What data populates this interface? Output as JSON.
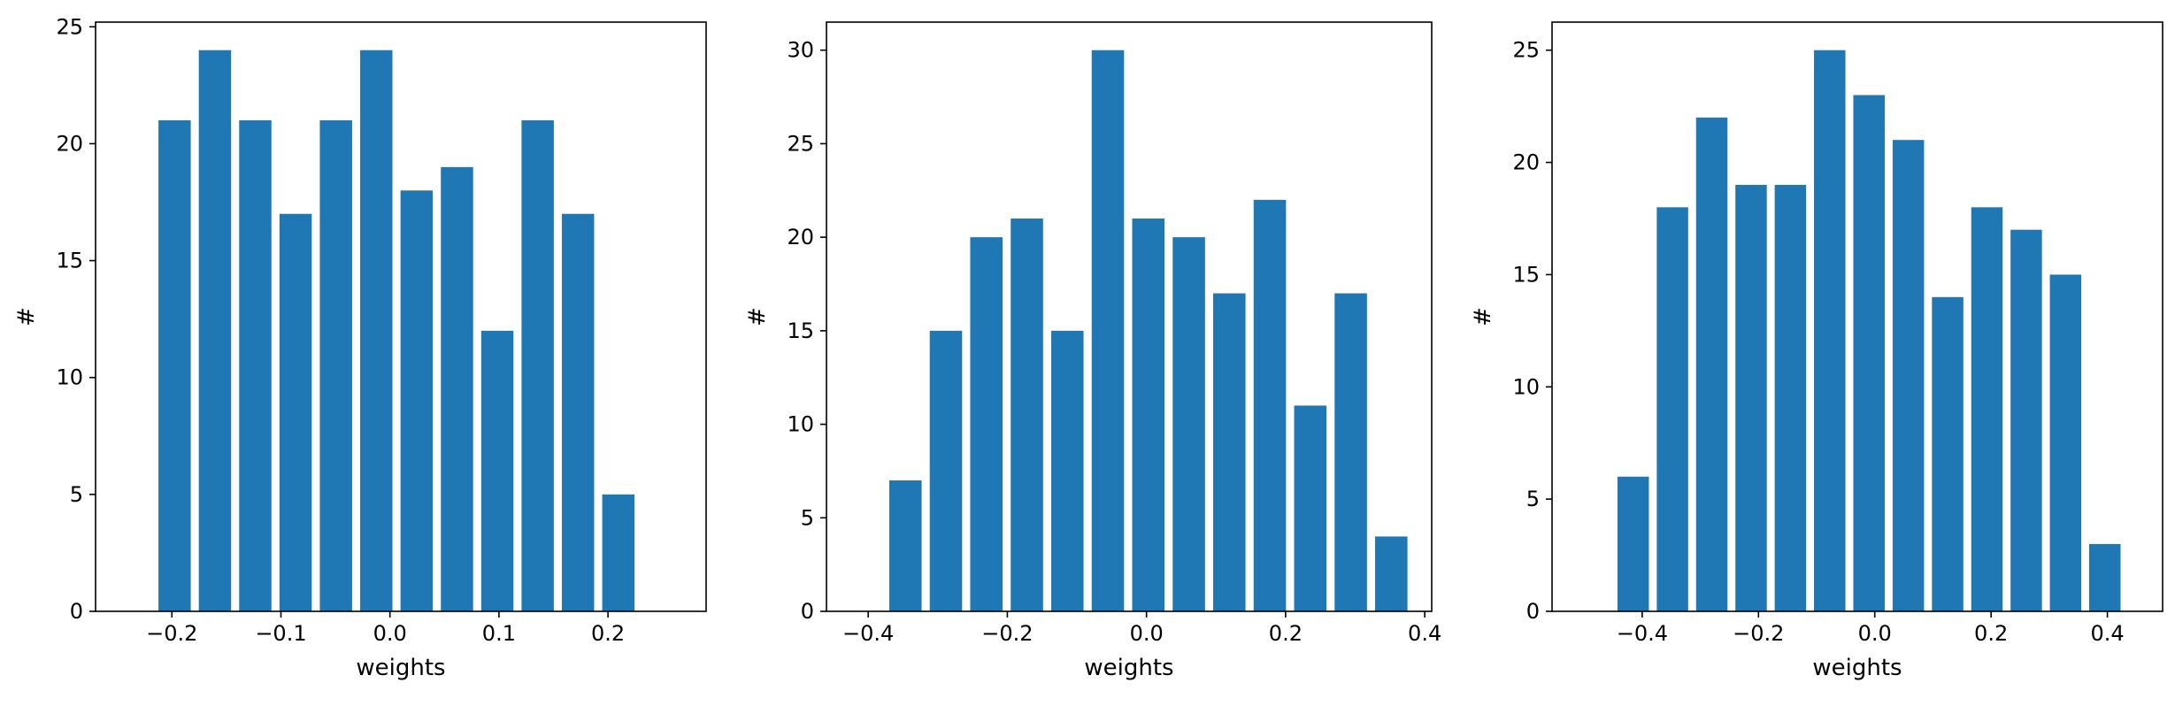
{
  "chart_data": [
    {
      "type": "bar",
      "xlabel": "weights",
      "ylabel": "#",
      "xlim": [
        -0.27,
        0.29
      ],
      "ylim": [
        0,
        25.2
      ],
      "xticks": [
        -0.2,
        -0.1,
        0.0,
        0.1,
        0.2
      ],
      "xtick_labels": [
        "−0.2",
        "−0.1",
        "0.0",
        "0.1",
        "0.2"
      ],
      "yticks": [
        0,
        5,
        10,
        15,
        20,
        25
      ],
      "ytick_labels": [
        "0",
        "5",
        "10",
        "15",
        "20",
        "25"
      ],
      "bar_width": 0.0296,
      "x": [
        -0.1975,
        -0.1605,
        -0.1235,
        -0.0865,
        -0.0495,
        -0.0125,
        0.0245,
        0.0615,
        0.0985,
        0.1355,
        0.1725,
        0.2095
      ],
      "values": [
        21,
        24,
        21,
        17,
        21,
        24,
        18,
        19,
        12,
        21,
        17,
        5
      ],
      "color": "#1f77b4",
      "grid": false
    },
    {
      "type": "bar",
      "xlabel": "weights",
      "ylabel": "#",
      "xlim": [
        -0.46,
        0.41
      ],
      "ylim": [
        0,
        31.5
      ],
      "xticks": [
        -0.4,
        -0.2,
        0.0,
        0.2,
        0.4
      ],
      "xtick_labels": [
        "−0.4",
        "−0.2",
        "0.0",
        "0.2",
        "0.4"
      ],
      "yticks": [
        0,
        5,
        10,
        15,
        20,
        25,
        30
      ],
      "ytick_labels": [
        "0",
        "5",
        "10",
        "15",
        "20",
        "25",
        "30"
      ],
      "bar_width": 0.0465,
      "x": [
        -0.3465,
        -0.2883,
        -0.2301,
        -0.1719,
        -0.1137,
        -0.0555,
        0.0027,
        0.0609,
        0.1191,
        0.1773,
        0.2355,
        0.2937,
        0.3519
      ],
      "values": [
        7,
        15,
        20,
        21,
        15,
        30,
        21,
        20,
        17,
        22,
        11,
        17,
        4
      ],
      "color": "#1f77b4",
      "grid": false
    },
    {
      "type": "bar",
      "xlabel": "weights",
      "ylabel": "#",
      "xlim": [
        -0.555,
        0.495
      ],
      "ylim": [
        0,
        26.25
      ],
      "xticks": [
        -0.4,
        -0.2,
        0.0,
        0.2,
        0.4
      ],
      "xtick_labels": [
        "−0.4",
        "−0.2",
        "0.0",
        "0.2",
        "0.4"
      ],
      "yticks": [
        0,
        5,
        10,
        15,
        20,
        25
      ],
      "ytick_labels": [
        "0",
        "5",
        "10",
        "15",
        "20",
        "25"
      ],
      "bar_width": 0.054,
      "x": [
        -0.4155,
        -0.3479,
        -0.2803,
        -0.2127,
        -0.1451,
        -0.0775,
        -0.0099,
        0.0577,
        0.1253,
        0.1929,
        0.2605,
        0.3281,
        0.3957
      ],
      "values": [
        6,
        18,
        22,
        19,
        19,
        25,
        23,
        21,
        14,
        18,
        17,
        15,
        3
      ],
      "color": "#1f77b4",
      "grid": false
    }
  ]
}
